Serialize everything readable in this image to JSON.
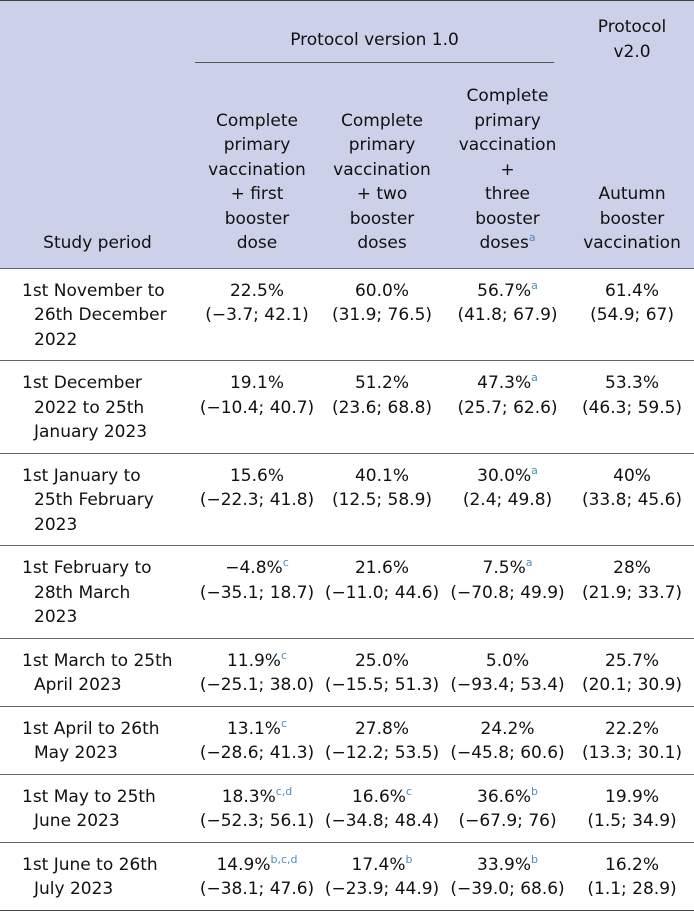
{
  "header": {
    "study_period": "Study period",
    "protocol_v1": "Protocol version 1.0",
    "protocol_v2_l1": "Protocol",
    "protocol_v2_l2": "v2.0",
    "col1": [
      "Complete",
      "primary",
      "vaccination",
      "+ first",
      "booster",
      "dose"
    ],
    "col2": [
      "Complete",
      "primary",
      "vaccination",
      "+ two",
      "booster",
      "doses"
    ],
    "col3": [
      "Complete",
      "primary",
      "vaccination +",
      "three",
      "booster",
      "doses"
    ],
    "col3_sup": "a",
    "col4": [
      "Autumn",
      "booster",
      "vaccination"
    ]
  },
  "rows": [
    {
      "period": [
        "1st November to",
        "26th December",
        "2022"
      ],
      "c1": {
        "v": "22.5%",
        "sup": "",
        "ci": "(−3.7; 42.1)"
      },
      "c2": {
        "v": "60.0%",
        "sup": "",
        "ci": "(31.9; 76.5)"
      },
      "c3": {
        "v": "56.7%",
        "sup": "a",
        "ci": "(41.8; 67.9)"
      },
      "c4": {
        "v": "61.4%",
        "sup": "",
        "ci": "(54.9; 67)"
      }
    },
    {
      "period": [
        "1st December",
        "2022 to 25th",
        "January 2023"
      ],
      "c1": {
        "v": "19.1%",
        "sup": "",
        "ci": "(−10.4; 40.7)"
      },
      "c2": {
        "v": "51.2%",
        "sup": "",
        "ci": "(23.6; 68.8)"
      },
      "c3": {
        "v": "47.3%",
        "sup": "a",
        "ci": "(25.7; 62.6)"
      },
      "c4": {
        "v": "53.3%",
        "sup": "",
        "ci": "(46.3; 59.5)"
      }
    },
    {
      "period": [
        "1st January to",
        "25th February",
        "2023"
      ],
      "c1": {
        "v": "15.6%",
        "sup": "",
        "ci": "(−22.3; 41.8)"
      },
      "c2": {
        "v": "40.1%",
        "sup": "",
        "ci": "(12.5; 58.9)"
      },
      "c3": {
        "v": "30.0%",
        "sup": "a",
        "ci": "(2.4; 49.8)"
      },
      "c4": {
        "v": "40%",
        "sup": "",
        "ci": "(33.8; 45.6)"
      }
    },
    {
      "period": [
        "1st February to",
        "28th March",
        "2023"
      ],
      "c1": {
        "v": "−4.8%",
        "sup": "c",
        "ci": "(−35.1; 18.7)"
      },
      "c2": {
        "v": "21.6%",
        "sup": "",
        "ci": "(−11.0; 44.6)"
      },
      "c3": {
        "v": "7.5%",
        "sup": "a",
        "ci": "(−70.8; 49.9)"
      },
      "c4": {
        "v": "28%",
        "sup": "",
        "ci": "(21.9; 33.7)"
      }
    },
    {
      "period": [
        "1st March to 25th",
        "April 2023"
      ],
      "c1": {
        "v": "11.9%",
        "sup": "c",
        "ci": "(−25.1; 38.0)"
      },
      "c2": {
        "v": "25.0%",
        "sup": "",
        "ci": "(−15.5; 51.3)"
      },
      "c3": {
        "v": "5.0%",
        "sup": "",
        "ci": "(−93.4; 53.4)"
      },
      "c4": {
        "v": "25.7%",
        "sup": "",
        "ci": "(20.1; 30.9)"
      }
    },
    {
      "period": [
        "1st April to 26th",
        "May 2023"
      ],
      "c1": {
        "v": "13.1%",
        "sup": "c",
        "ci": "(−28.6; 41.3)"
      },
      "c2": {
        "v": "27.8%",
        "sup": "",
        "ci": "(−12.2; 53.5)"
      },
      "c3": {
        "v": "24.2%",
        "sup": "",
        "ci": "(−45.8; 60.6)"
      },
      "c4": {
        "v": "22.2%",
        "sup": "",
        "ci": "(13.3; 30.1)"
      }
    },
    {
      "period": [
        "1st May to 25th",
        "June 2023"
      ],
      "c1": {
        "v": "18.3%",
        "sup": "c,d",
        "ci": "(−52.3; 56.1)"
      },
      "c2": {
        "v": "16.6%",
        "sup": "c",
        "ci": "(−34.8; 48.4)"
      },
      "c3": {
        "v": "36.6%",
        "sup": "b",
        "ci": "(−67.9; 76)"
      },
      "c4": {
        "v": "19.9%",
        "sup": "",
        "ci": "(1.5; 34.9)"
      }
    },
    {
      "period": [
        "1st June to 26th",
        "July 2023"
      ],
      "c1": {
        "v": "14.9%",
        "sup": "b,c,d",
        "ci": "(−38.1; 47.6)"
      },
      "c2": {
        "v": "17.4%",
        "sup": "b",
        "ci": "(−23.9; 44.9)"
      },
      "c3": {
        "v": "33.9%",
        "sup": "b",
        "ci": "(−39.0; 68.6)"
      },
      "c4": {
        "v": "16.2%",
        "sup": "",
        "ci": "(1.1; 28.9)"
      }
    }
  ]
}
